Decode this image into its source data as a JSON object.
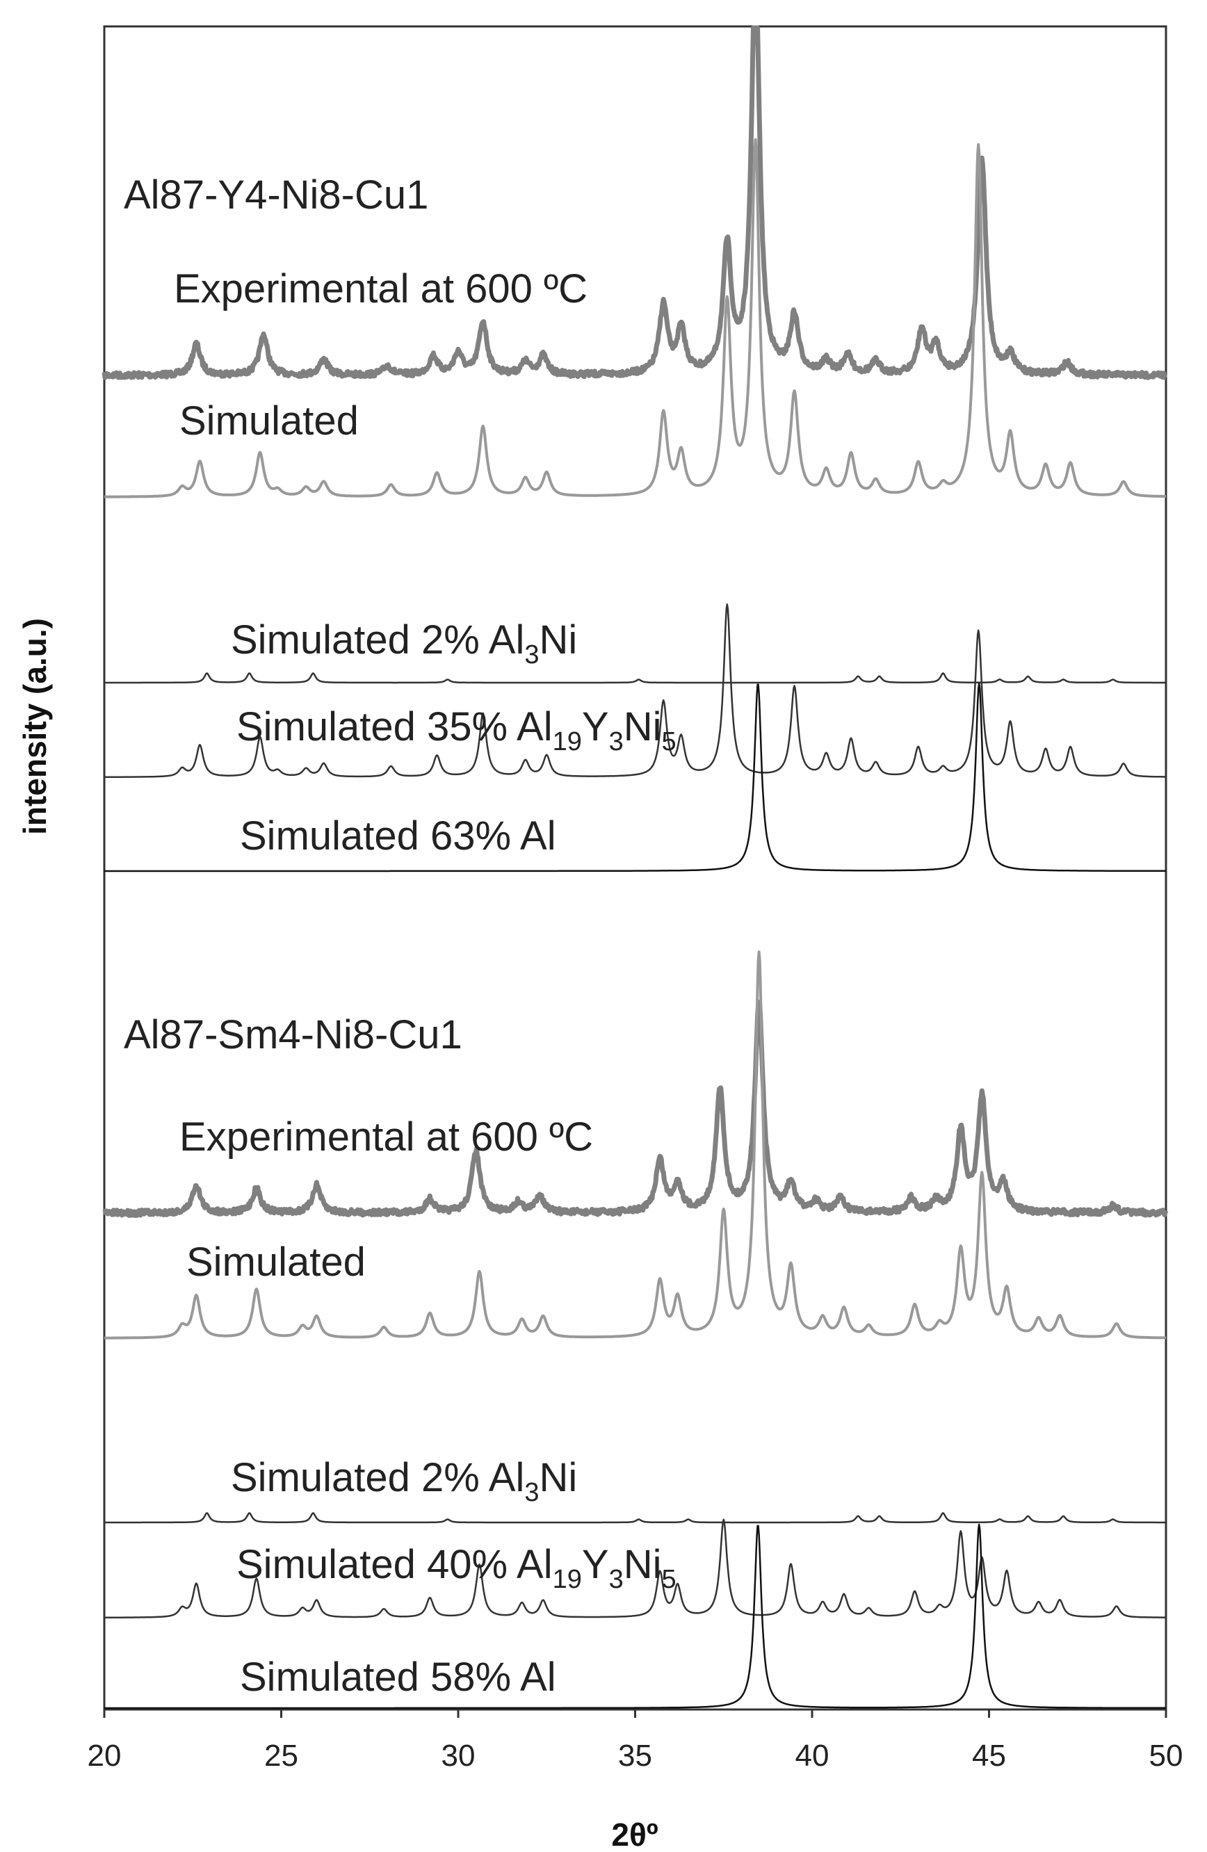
{
  "chart_data": {
    "type": "line",
    "xlabel": "2θº",
    "ylabel": "intensity (a.u.)",
    "xlim": [
      20,
      50
    ],
    "xticks": [
      "20",
      "25",
      "30",
      "35",
      "40",
      "45",
      "50"
    ],
    "grid": false,
    "panels": [
      {
        "title": "Al87-Y4-Ni8-Cu1",
        "series": [
          {
            "name": "Experimental at 600 ºC",
            "color": "#808080",
            "peaks": [
              [
                22.6,
                1.0
              ],
              [
                24.5,
                1.3
              ],
              [
                26.2,
                0.5
              ],
              [
                28.0,
                0.3
              ],
              [
                29.3,
                0.6
              ],
              [
                30.0,
                0.7
              ],
              [
                30.7,
                1.7
              ],
              [
                31.9,
                0.4
              ],
              [
                32.4,
                0.6
              ],
              [
                35.8,
                2.2
              ],
              [
                36.3,
                1.4
              ],
              [
                37.6,
                4.0
              ],
              [
                38.4,
                13.0
              ],
              [
                39.5,
                1.8
              ],
              [
                40.4,
                0.4
              ],
              [
                41.0,
                0.6
              ],
              [
                41.8,
                0.4
              ],
              [
                43.1,
                1.4
              ],
              [
                43.5,
                0.9
              ],
              [
                44.8,
                6.9
              ],
              [
                45.6,
                0.6
              ],
              [
                47.2,
                0.4
              ]
            ]
          },
          {
            "name": "Simulated",
            "color": "#999999",
            "peaks": [
              [
                22.2,
                0.3
              ],
              [
                22.7,
                1.2
              ],
              [
                24.4,
                1.5
              ],
              [
                24.9,
                0.2
              ],
              [
                25.7,
                0.3
              ],
              [
                26.2,
                0.5
              ],
              [
                28.1,
                0.4
              ],
              [
                29.4,
                0.8
              ],
              [
                30.7,
                2.4
              ],
              [
                31.9,
                0.6
              ],
              [
                32.5,
                0.8
              ],
              [
                35.8,
                2.8
              ],
              [
                36.3,
                1.4
              ],
              [
                37.6,
                6.5
              ],
              [
                38.4,
                12.0
              ],
              [
                39.5,
                3.4
              ],
              [
                40.4,
                0.8
              ],
              [
                41.1,
                1.4
              ],
              [
                41.8,
                0.5
              ],
              [
                43.0,
                1.1
              ],
              [
                43.7,
                0.3
              ],
              [
                44.7,
                12.0
              ],
              [
                45.6,
                2.0
              ],
              [
                46.6,
                1.0
              ],
              [
                47.3,
                1.1
              ],
              [
                48.8,
                0.5
              ]
            ]
          },
          {
            "name": "Simulated 2% Al3Ni",
            "color": "#333333",
            "peaks": [
              [
                22.9,
                0.3
              ],
              [
                24.1,
                0.3
              ],
              [
                25.9,
                0.3
              ],
              [
                29.7,
                0.1
              ],
              [
                35.1,
                0.1
              ],
              [
                41.3,
                0.2
              ],
              [
                41.9,
                0.2
              ],
              [
                43.7,
                0.3
              ],
              [
                45.3,
                0.1
              ],
              [
                46.1,
                0.2
              ],
              [
                47.1,
                0.1
              ],
              [
                48.5,
                0.1
              ]
            ]
          },
          {
            "name": "Simulated 35% Al19Y3Ni5",
            "color": "#333333",
            "peaks": [
              [
                22.2,
                0.3
              ],
              [
                22.7,
                1.2
              ],
              [
                24.4,
                1.5
              ],
              [
                24.9,
                0.2
              ],
              [
                25.7,
                0.3
              ],
              [
                26.2,
                0.5
              ],
              [
                28.1,
                0.4
              ],
              [
                29.4,
                0.8
              ],
              [
                30.7,
                2.4
              ],
              [
                31.9,
                0.6
              ],
              [
                32.5,
                0.8
              ],
              [
                35.8,
                2.8
              ],
              [
                36.3,
                1.4
              ],
              [
                37.6,
                6.5
              ],
              [
                39.5,
                3.4
              ],
              [
                40.4,
                0.8
              ],
              [
                41.1,
                1.4
              ],
              [
                41.8,
                0.5
              ],
              [
                43.0,
                1.1
              ],
              [
                43.7,
                0.3
              ],
              [
                44.7,
                5.5
              ],
              [
                45.6,
                2.0
              ],
              [
                46.6,
                1.0
              ],
              [
                47.3,
                1.1
              ],
              [
                48.8,
                0.5
              ]
            ]
          },
          {
            "name": "Simulated 63% Al",
            "color": "#111111",
            "peaks": [
              [
                38.47,
                6.0
              ],
              [
                44.72,
                6.0
              ]
            ]
          }
        ]
      },
      {
        "title": "Al87-Sm4-Ni8-Cu1",
        "series": [
          {
            "name": "Experimental at 600 ºC",
            "color": "#808080",
            "peaks": [
              [
                22.6,
                0.8
              ],
              [
                24.3,
                0.7
              ],
              [
                26.0,
                0.8
              ],
              [
                29.2,
                0.4
              ],
              [
                30.5,
                1.8
              ],
              [
                31.7,
                0.3
              ],
              [
                32.3,
                0.5
              ],
              [
                35.7,
                1.5
              ],
              [
                36.2,
                0.8
              ],
              [
                37.4,
                3.5
              ],
              [
                38.5,
                6.0
              ],
              [
                39.4,
                0.8
              ],
              [
                40.1,
                0.3
              ],
              [
                40.8,
                0.4
              ],
              [
                42.8,
                0.4
              ],
              [
                43.5,
                0.3
              ],
              [
                44.2,
                2.3
              ],
              [
                44.8,
                3.3
              ],
              [
                45.4,
                0.8
              ],
              [
                48.5,
                0.2
              ]
            ]
          },
          {
            "name": "Simulated",
            "color": "#999999",
            "peaks": [
              [
                22.2,
                0.3
              ],
              [
                22.6,
                1.2
              ],
              [
                24.3,
                1.4
              ],
              [
                25.6,
                0.3
              ],
              [
                26.0,
                0.6
              ],
              [
                27.9,
                0.3
              ],
              [
                29.2,
                0.7
              ],
              [
                30.6,
                1.9
              ],
              [
                31.8,
                0.5
              ],
              [
                32.4,
                0.6
              ],
              [
                35.7,
                1.6
              ],
              [
                36.2,
                1.1
              ],
              [
                37.5,
                3.5
              ],
              [
                38.5,
                11.0
              ],
              [
                39.4,
                1.9
              ],
              [
                40.3,
                0.5
              ],
              [
                40.9,
                0.8
              ],
              [
                41.6,
                0.3
              ],
              [
                42.9,
                0.9
              ],
              [
                43.6,
                0.3
              ],
              [
                44.2,
                2.4
              ],
              [
                44.8,
                4.6
              ],
              [
                45.5,
                1.3
              ],
              [
                46.4,
                0.5
              ],
              [
                47.0,
                0.6
              ],
              [
                48.6,
                0.4
              ]
            ]
          },
          {
            "name": "Simulated 2% Al3Ni",
            "color": "#333333",
            "peaks": [
              [
                22.9,
                0.3
              ],
              [
                24.1,
                0.3
              ],
              [
                25.9,
                0.3
              ],
              [
                29.7,
                0.1
              ],
              [
                35.1,
                0.1
              ],
              [
                36.5,
                0.1
              ],
              [
                41.3,
                0.2
              ],
              [
                41.9,
                0.2
              ],
              [
                43.7,
                0.3
              ],
              [
                45.3,
                0.1
              ],
              [
                46.1,
                0.2
              ],
              [
                47.1,
                0.2
              ],
              [
                48.5,
                0.1
              ]
            ]
          },
          {
            "name": "Simulated 40% Al19Y3Ni5",
            "color": "#333333",
            "peaks": [
              [
                22.2,
                0.3
              ],
              [
                22.6,
                1.2
              ],
              [
                24.3,
                1.4
              ],
              [
                25.6,
                0.3
              ],
              [
                26.0,
                0.6
              ],
              [
                27.9,
                0.3
              ],
              [
                29.2,
                0.7
              ],
              [
                30.6,
                1.9
              ],
              [
                31.8,
                0.5
              ],
              [
                32.4,
                0.6
              ],
              [
                35.7,
                1.6
              ],
              [
                36.2,
                1.1
              ],
              [
                37.5,
                3.5
              ],
              [
                39.4,
                1.9
              ],
              [
                40.3,
                0.5
              ],
              [
                40.9,
                0.8
              ],
              [
                41.6,
                0.3
              ],
              [
                42.9,
                0.9
              ],
              [
                43.6,
                0.3
              ],
              [
                44.2,
                3.0
              ],
              [
                44.8,
                2.0
              ],
              [
                45.5,
                1.6
              ],
              [
                46.4,
                0.5
              ],
              [
                47.0,
                0.6
              ],
              [
                48.6,
                0.4
              ]
            ]
          },
          {
            "name": "Simulated 58% Al",
            "color": "#111111",
            "peaks": [
              [
                38.47,
                5.5
              ],
              [
                44.72,
                5.5
              ]
            ]
          }
        ]
      }
    ]
  },
  "labels": {
    "panel1_title": "Al87-Y4-Ni8-Cu1",
    "panel1_exp": "Experimental at 600 ºC",
    "panel1_sim": "Simulated",
    "panel1_al3ni_pre": "Simulated 2% Al",
    "panel1_al3ni_sub": "3",
    "panel1_al3ni_post": "Ni",
    "panel1_al19_pre": "Simulated 35% Al",
    "panel1_al19_sub1": "19",
    "panel1_al19_y": "Y",
    "panel1_al19_sub2": "3",
    "panel1_al19_ni": "Ni",
    "panel1_al19_sub3": "5",
    "panel1_al": "Simulated 63% Al",
    "panel2_title": "Al87-Sm4-Ni8-Cu1",
    "panel2_exp": "Experimental at 600 ºC",
    "panel2_sim": "Simulated",
    "panel2_al3ni_pre": "Simulated 2% Al",
    "panel2_al3ni_sub": "3",
    "panel2_al3ni_post": "Ni",
    "panel2_al19_pre": "Simulated 40% Al",
    "panel2_al19_sub1": "19",
    "panel2_al19_y": "Y",
    "panel2_al19_sub2": "3",
    "panel2_al19_ni": "Ni",
    "panel2_al19_sub3": "5",
    "panel2_al": "Simulated 58% Al"
  }
}
